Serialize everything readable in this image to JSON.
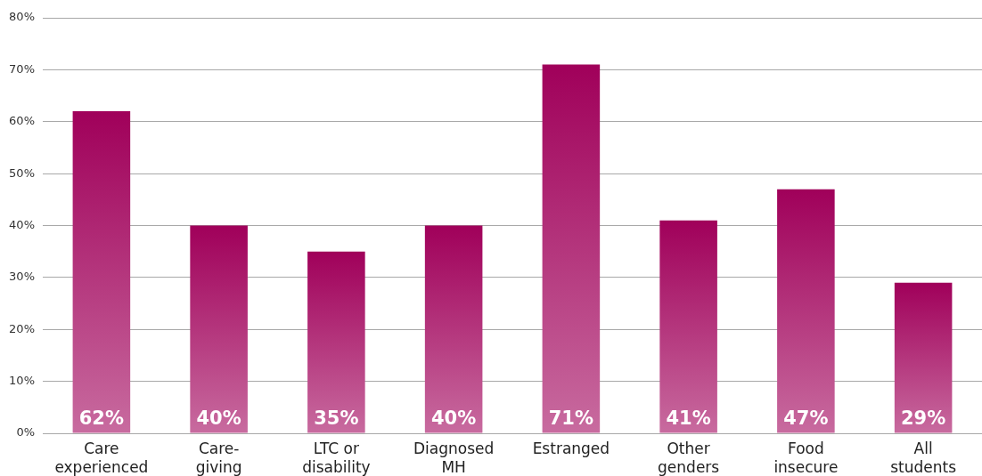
{
  "chart_data": {
    "type": "bar",
    "categories": [
      "Care experienced",
      "Care-giving",
      "LTC or disability",
      "Diagnosed MH",
      "Estranged",
      "Other genders",
      "Food insecure",
      "All students"
    ],
    "values": [
      62,
      40,
      35,
      40,
      71,
      41,
      47,
      29
    ],
    "value_labels": [
      "62%",
      "40%",
      "35%",
      "40%",
      "71%",
      "41%",
      "47%",
      "29%"
    ],
    "color": "#a0005a",
    "ylim": [
      0,
      80
    ],
    "yticks": [
      {
        "value": 0,
        "label": "0%"
      },
      {
        "value": 10,
        "label": "10%"
      },
      {
        "value": 20,
        "label": "20%"
      },
      {
        "value": 30,
        "label": "30%"
      },
      {
        "value": 40,
        "label": "40%"
      },
      {
        "value": 50,
        "label": "50%"
      },
      {
        "value": 60,
        "label": "60%"
      },
      {
        "value": 70,
        "label": "70%"
      },
      {
        "value": 80,
        "label": "80%"
      }
    ],
    "grid": "y",
    "legend": false
  }
}
